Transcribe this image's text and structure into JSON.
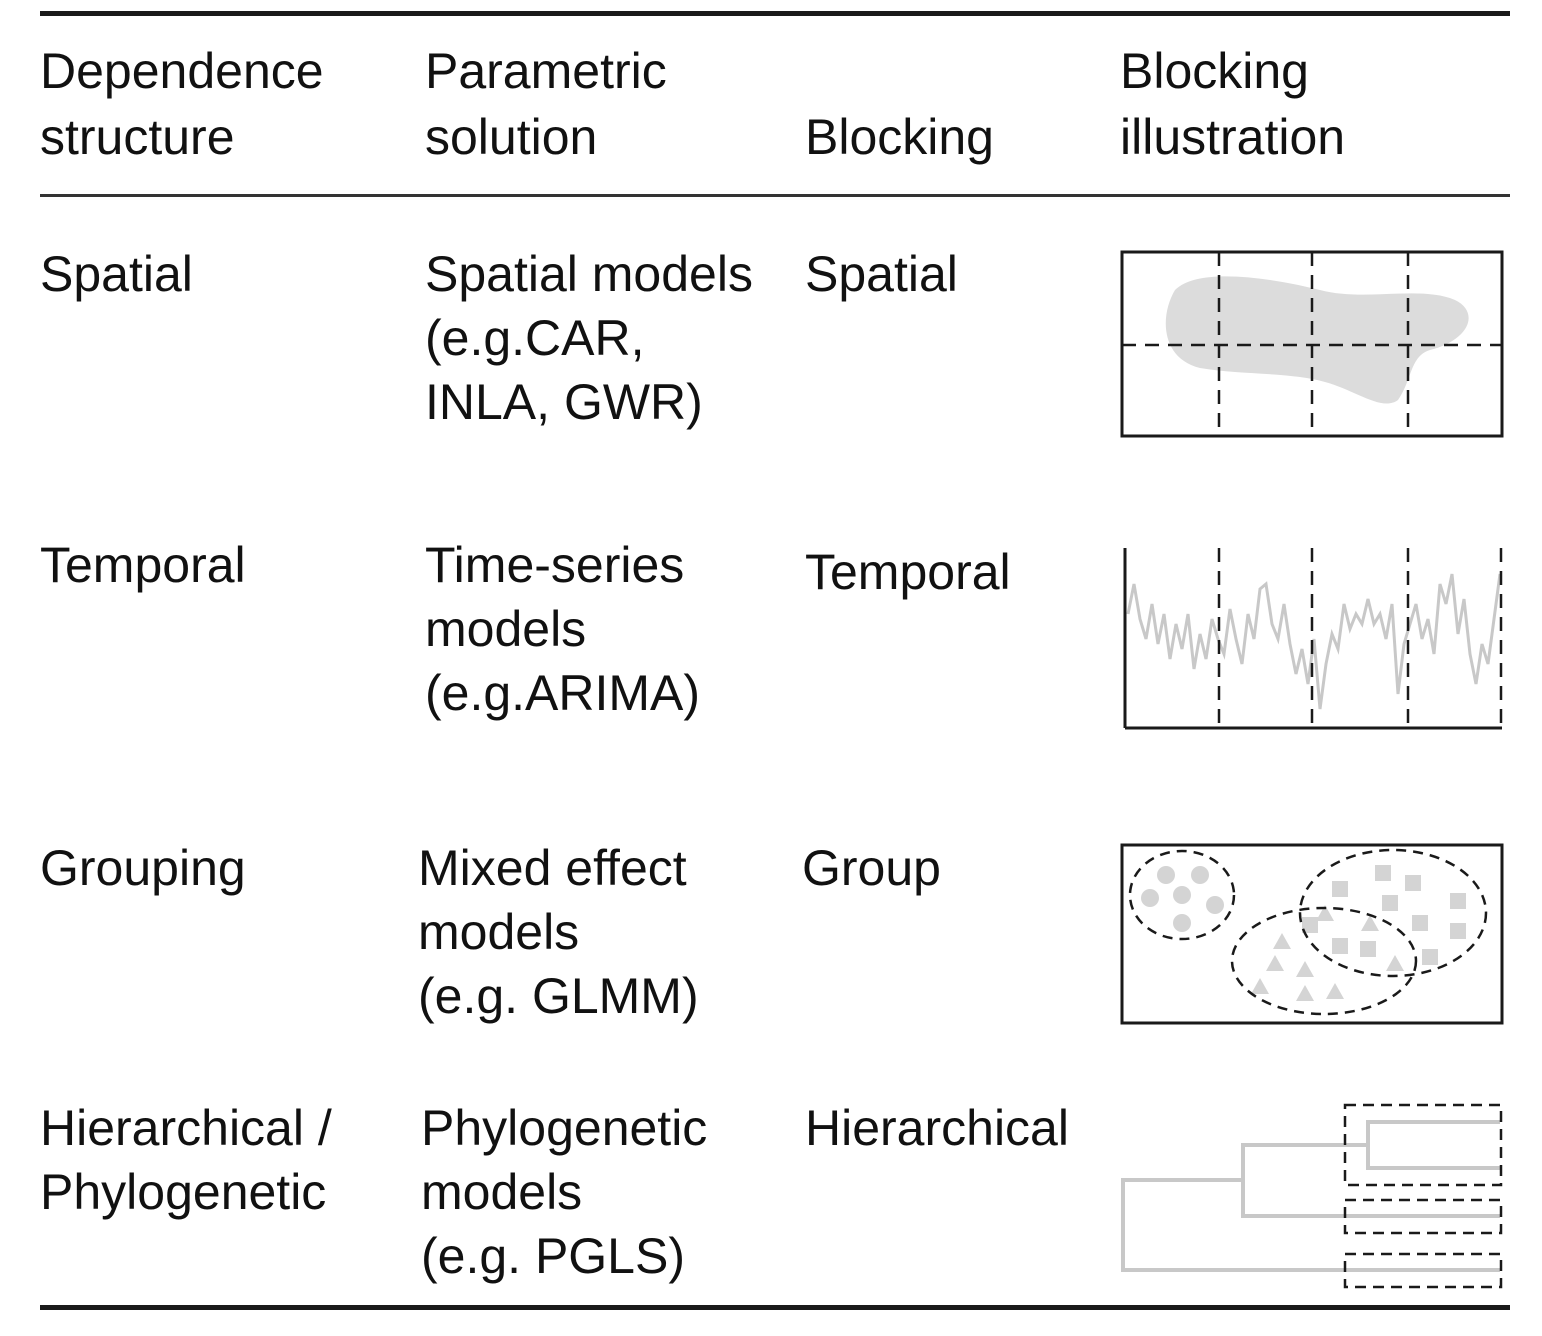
{
  "header": {
    "dependence": "Dependence\nstructure",
    "parametric": "Parametric\nsolution",
    "blocking": "Blocking",
    "illustration": "Blocking\nillustration"
  },
  "rows": [
    {
      "dependence": "Spatial",
      "parametric": "Spatial models\n(e.g.CAR,\nINLA, GWR)",
      "blocking": "Spatial",
      "illustration_icon": "spatial-blocks-icon"
    },
    {
      "dependence": "Temporal",
      "parametric": "Time-series\nmodels\n(e.g.ARIMA)",
      "blocking": "Temporal",
      "illustration_icon": "temporal-blocks-icon"
    },
    {
      "dependence": "Grouping",
      "parametric": "Mixed effect\nmodels\n(e.g. GLMM)",
      "blocking": "Group",
      "illustration_icon": "group-blocks-icon"
    },
    {
      "dependence": "Hierarchical /\nPhylogenetic",
      "parametric": "Phylogenetic\nmodels\n(e.g. PGLS)",
      "blocking": "Hierarchical",
      "illustration_icon": "hierarchical-blocks-icon"
    }
  ],
  "colors": {
    "line": "#1a1a1a",
    "fill": "#dcdcdc",
    "stroke_light": "#c8c8c8"
  }
}
